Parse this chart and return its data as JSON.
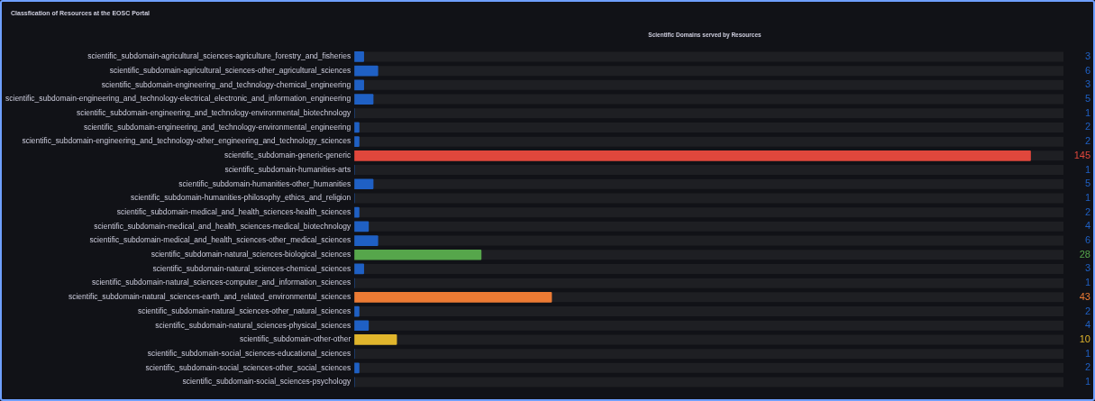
{
  "chart_data": {
    "type": "bar",
    "orientation": "horizontal",
    "title": "Classfication of Resources at the EOSC Portal",
    "subtitle": "Scientific Domains served by Resources",
    "categories": [
      "scientific_subdomain-agricultural_sciences-agriculture_forestry_and_fisheries",
      "scientific_subdomain-agricultural_sciences-other_agricultural_sciences",
      "scientific_subdomain-engineering_and_technology-chemical_engineering",
      "scientific_subdomain-engineering_and_technology-electrical_electronic_and_information_engineering",
      "scientific_subdomain-engineering_and_technology-environmental_biotechnology",
      "scientific_subdomain-engineering_and_technology-environmental_engineering",
      "scientific_subdomain-engineering_and_technology-other_engineering_and_technology_sciences",
      "scientific_subdomain-generic-generic",
      "scientific_subdomain-humanities-arts",
      "scientific_subdomain-humanities-other_humanities",
      "scientific_subdomain-humanities-philosophy_ethics_and_religion",
      "scientific_subdomain-medical_and_health_sciences-health_sciences",
      "scientific_subdomain-medical_and_health_sciences-medical_biotechnology",
      "scientific_subdomain-medical_and_health_sciences-other_medical_sciences",
      "scientific_subdomain-natural_sciences-biological_sciences",
      "scientific_subdomain-natural_sciences-chemical_sciences",
      "scientific_subdomain-natural_sciences-computer_and_information_sciences",
      "scientific_subdomain-natural_sciences-earth_and_related_environmental_sciences",
      "scientific_subdomain-natural_sciences-other_natural_sciences",
      "scientific_subdomain-natural_sciences-physical_sciences",
      "scientific_subdomain-other-other",
      "scientific_subdomain-social_sciences-educational_sciences",
      "scientific_subdomain-social_sciences-other_social_sciences",
      "scientific_subdomain-social_sciences-psychology"
    ],
    "values": [
      3,
      6,
      3,
      5,
      1,
      2,
      2,
      145,
      1,
      5,
      1,
      2,
      4,
      6,
      28,
      3,
      1,
      43,
      2,
      4,
      10,
      1,
      2,
      1
    ],
    "colors": [
      "#1f60c4",
      "#1f60c4",
      "#1f60c4",
      "#1f60c4",
      "#1f60c4",
      "#1f60c4",
      "#1f60c4",
      "#e0473c",
      "#1f60c4",
      "#1f60c4",
      "#1f60c4",
      "#1f60c4",
      "#1f60c4",
      "#1f60c4",
      "#56a64b",
      "#1f60c4",
      "#1f60c4",
      "#ec7b34",
      "#1f60c4",
      "#1f60c4",
      "#e0b52c",
      "#1f60c4",
      "#1f60c4",
      "#1f60c4"
    ],
    "xlim": [
      1,
      152
    ],
    "tick_labels": "y",
    "data_labels": true
  }
}
